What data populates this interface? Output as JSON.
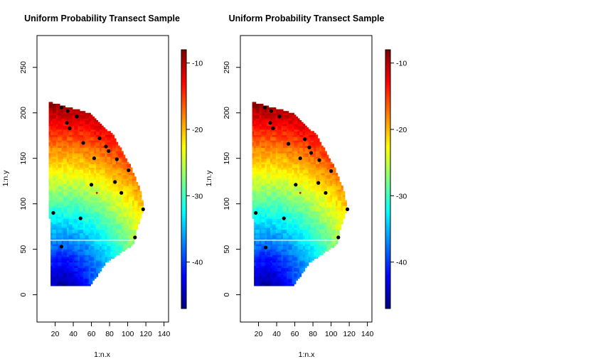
{
  "chart_data": [
    {
      "type": "heatmap",
      "title": "Uniform Probability Transect Sample",
      "xlabel": "1:n.x",
      "ylabel": "1:n.y",
      "xlim": [
        0,
        145
      ],
      "ylim": [
        -30,
        285
      ],
      "x_ticks": [
        "20",
        "40",
        "60",
        "80",
        "100",
        "120",
        "140"
      ],
      "y_ticks": [
        "0",
        "50",
        "100",
        "150",
        "200",
        "250"
      ],
      "colorbar": {
        "min": -47,
        "max": -8,
        "ticks": [
          "-10",
          "-20",
          "-30",
          "-40"
        ],
        "tick_values": [
          -10,
          -20,
          -30,
          -40
        ]
      },
      "white_line_y": 60,
      "points": [
        {
          "x": 27,
          "y": 206
        },
        {
          "x": 34,
          "y": 202
        },
        {
          "x": 44,
          "y": 196
        },
        {
          "x": 33,
          "y": 189
        },
        {
          "x": 36,
          "y": 183
        },
        {
          "x": 51,
          "y": 167
        },
        {
          "x": 69,
          "y": 172
        },
        {
          "x": 76,
          "y": 163
        },
        {
          "x": 79,
          "y": 158
        },
        {
          "x": 63,
          "y": 150
        },
        {
          "x": 88,
          "y": 149
        },
        {
          "x": 101,
          "y": 137
        },
        {
          "x": 60,
          "y": 121
        },
        {
          "x": 86,
          "y": 124
        },
        {
          "x": 93,
          "y": 112
        },
        {
          "x": 18,
          "y": 90
        },
        {
          "x": 48,
          "y": 84
        },
        {
          "x": 117,
          "y": 94
        },
        {
          "x": 108,
          "y": 63
        },
        {
          "x": 27,
          "y": 53
        }
      ],
      "highlight_point": {
        "x": 66,
        "y": 112
      }
    },
    {
      "type": "heatmap",
      "title": "Uniform Probability Transect Sample",
      "xlabel": "1:n.x",
      "ylabel": "1:n.y",
      "xlim": [
        0,
        145
      ],
      "ylim": [
        -30,
        285
      ],
      "x_ticks": [
        "20",
        "40",
        "60",
        "80",
        "100",
        "120",
        "140"
      ],
      "y_ticks": [
        "0",
        "50",
        "100",
        "150",
        "200",
        "250"
      ],
      "colorbar": {
        "min": -47,
        "max": -8,
        "ticks": [
          "-10",
          "-20",
          "-30",
          "-40"
        ],
        "tick_values": [
          -10,
          -20,
          -30,
          -40
        ]
      },
      "white_line_y": 60,
      "points": [
        {
          "x": 27,
          "y": 206
        },
        {
          "x": 34,
          "y": 202
        },
        {
          "x": 43,
          "y": 196
        },
        {
          "x": 33,
          "y": 189
        },
        {
          "x": 36,
          "y": 183
        },
        {
          "x": 53,
          "y": 166
        },
        {
          "x": 71,
          "y": 171
        },
        {
          "x": 76,
          "y": 162
        },
        {
          "x": 78,
          "y": 156
        },
        {
          "x": 66,
          "y": 150
        },
        {
          "x": 87,
          "y": 148
        },
        {
          "x": 100,
          "y": 136
        },
        {
          "x": 61,
          "y": 121
        },
        {
          "x": 86,
          "y": 123
        },
        {
          "x": 94,
          "y": 112
        },
        {
          "x": 17,
          "y": 90
        },
        {
          "x": 48,
          "y": 84
        },
        {
          "x": 118,
          "y": 94
        },
        {
          "x": 108,
          "y": 63
        },
        {
          "x": 28,
          "y": 52
        }
      ],
      "highlight_point": {
        "x": 66,
        "y": 112
      }
    }
  ]
}
